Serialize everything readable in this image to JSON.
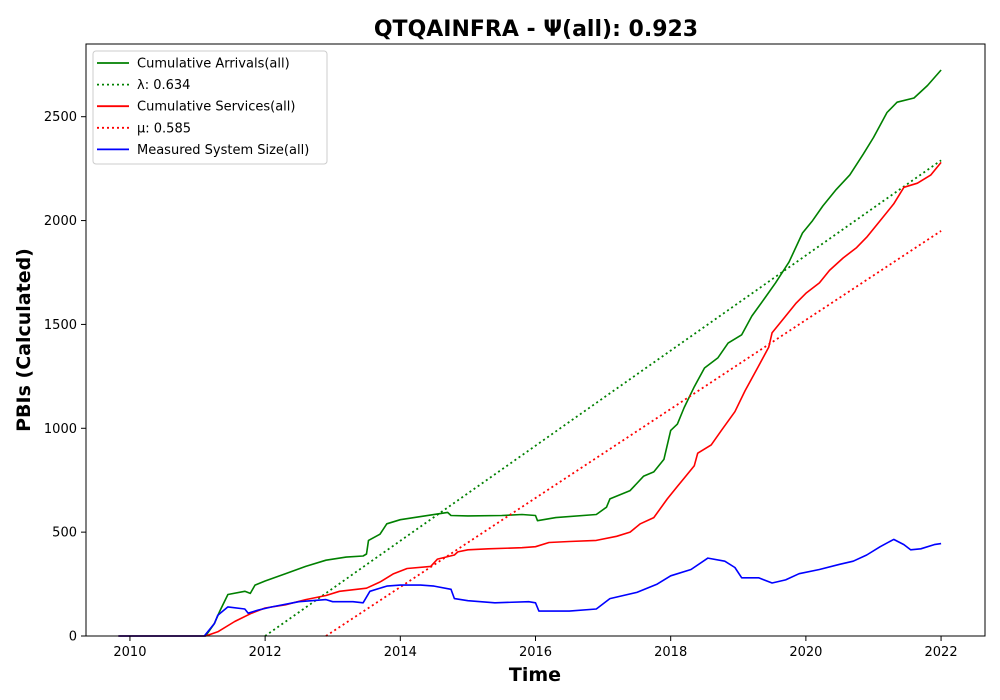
{
  "chart_data": {
    "type": "line",
    "title": "QTQAINFRA -  Ψ(all): 0.923",
    "xlabel": "Time",
    "ylabel": "PBIs (Calculated)",
    "xlim": [
      2009.35,
      2022.65
    ],
    "ylim": [
      0,
      2850
    ],
    "xticks": [
      2010,
      2012,
      2014,
      2016,
      2018,
      2020,
      2022
    ],
    "yticks": [
      0,
      500,
      1000,
      1500,
      2000,
      2500
    ],
    "grid": false,
    "legend_position": "upper-left",
    "series": [
      {
        "name": "Cumulative Arrivals(all)",
        "color": "#008000",
        "style": "solid",
        "points": [
          [
            2009.83,
            0
          ],
          [
            2011.12,
            0
          ],
          [
            2011.25,
            60
          ],
          [
            2011.33,
            120
          ],
          [
            2011.45,
            200
          ],
          [
            2011.7,
            215
          ],
          [
            2011.78,
            205
          ],
          [
            2011.85,
            245
          ],
          [
            2012.0,
            265
          ],
          [
            2012.3,
            300
          ],
          [
            2012.6,
            335
          ],
          [
            2012.9,
            365
          ],
          [
            2013.2,
            380
          ],
          [
            2013.45,
            385
          ],
          [
            2013.5,
            395
          ],
          [
            2013.53,
            460
          ],
          [
            2013.7,
            490
          ],
          [
            2013.8,
            540
          ],
          [
            2014.0,
            560
          ],
          [
            2014.3,
            575
          ],
          [
            2014.7,
            595
          ],
          [
            2014.75,
            580
          ],
          [
            2015.0,
            578
          ],
          [
            2015.5,
            580
          ],
          [
            2015.8,
            585
          ],
          [
            2016.0,
            580
          ],
          [
            2016.03,
            555
          ],
          [
            2016.3,
            570
          ],
          [
            2016.9,
            585
          ],
          [
            2017.05,
            620
          ],
          [
            2017.1,
            660
          ],
          [
            2017.4,
            700
          ],
          [
            2017.6,
            770
          ],
          [
            2017.75,
            790
          ],
          [
            2017.9,
            850
          ],
          [
            2018.0,
            990
          ],
          [
            2018.1,
            1020
          ],
          [
            2018.2,
            1100
          ],
          [
            2018.35,
            1200
          ],
          [
            2018.5,
            1290
          ],
          [
            2018.7,
            1340
          ],
          [
            2018.85,
            1410
          ],
          [
            2019.05,
            1450
          ],
          [
            2019.2,
            1540
          ],
          [
            2019.4,
            1630
          ],
          [
            2019.55,
            1700
          ],
          [
            2019.75,
            1800
          ],
          [
            2019.95,
            1940
          ],
          [
            2020.1,
            2000
          ],
          [
            2020.25,
            2070
          ],
          [
            2020.45,
            2150
          ],
          [
            2020.65,
            2220
          ],
          [
            2020.85,
            2320
          ],
          [
            2021.0,
            2400
          ],
          [
            2021.2,
            2520
          ],
          [
            2021.35,
            2570
          ],
          [
            2021.6,
            2590
          ],
          [
            2021.8,
            2650
          ],
          [
            2022.0,
            2725
          ]
        ]
      },
      {
        "name": "λ: 0.634",
        "color": "#008000",
        "style": "dotted",
        "points": [
          [
            2012.0,
            0
          ],
          [
            2022.0,
            2290
          ]
        ]
      },
      {
        "name": "Cumulative Services(all)",
        "color": "#ff0000",
        "style": "solid",
        "points": [
          [
            2009.83,
            0
          ],
          [
            2011.12,
            0
          ],
          [
            2011.3,
            20
          ],
          [
            2011.55,
            70
          ],
          [
            2011.8,
            110
          ],
          [
            2012.0,
            135
          ],
          [
            2012.3,
            150
          ],
          [
            2012.6,
            175
          ],
          [
            2012.9,
            195
          ],
          [
            2013.1,
            215
          ],
          [
            2013.5,
            230
          ],
          [
            2013.7,
            260
          ],
          [
            2013.9,
            300
          ],
          [
            2014.1,
            325
          ],
          [
            2014.45,
            335
          ],
          [
            2014.55,
            370
          ],
          [
            2014.8,
            390
          ],
          [
            2014.85,
            405
          ],
          [
            2015.0,
            415
          ],
          [
            2015.3,
            420
          ],
          [
            2015.8,
            425
          ],
          [
            2016.0,
            430
          ],
          [
            2016.2,
            450
          ],
          [
            2016.5,
            455
          ],
          [
            2016.9,
            460
          ],
          [
            2017.2,
            480
          ],
          [
            2017.4,
            500
          ],
          [
            2017.55,
            540
          ],
          [
            2017.75,
            570
          ],
          [
            2017.95,
            660
          ],
          [
            2018.1,
            720
          ],
          [
            2018.2,
            760
          ],
          [
            2018.35,
            820
          ],
          [
            2018.4,
            880
          ],
          [
            2018.6,
            920
          ],
          [
            2018.75,
            990
          ],
          [
            2018.95,
            1080
          ],
          [
            2019.1,
            1180
          ],
          [
            2019.3,
            1300
          ],
          [
            2019.45,
            1390
          ],
          [
            2019.5,
            1460
          ],
          [
            2019.7,
            1540
          ],
          [
            2019.85,
            1600
          ],
          [
            2020.0,
            1650
          ],
          [
            2020.2,
            1700
          ],
          [
            2020.35,
            1760
          ],
          [
            2020.55,
            1820
          ],
          [
            2020.75,
            1870
          ],
          [
            2020.9,
            1920
          ],
          [
            2021.1,
            2000
          ],
          [
            2021.3,
            2080
          ],
          [
            2021.45,
            2160
          ],
          [
            2021.65,
            2180
          ],
          [
            2021.85,
            2220
          ],
          [
            2022.0,
            2280
          ]
        ]
      },
      {
        "name": "μ: 0.585",
        "color": "#ff0000",
        "style": "dotted",
        "points": [
          [
            2012.9,
            0
          ],
          [
            2022.0,
            1950
          ]
        ]
      },
      {
        "name": "Measured System Size(all)",
        "color": "#0000ff",
        "style": "solid",
        "points": [
          [
            2009.83,
            0
          ],
          [
            2011.1,
            0
          ],
          [
            2011.25,
            60
          ],
          [
            2011.3,
            100
          ],
          [
            2011.45,
            140
          ],
          [
            2011.7,
            130
          ],
          [
            2011.75,
            110
          ],
          [
            2011.9,
            125
          ],
          [
            2012.1,
            140
          ],
          [
            2012.5,
            165
          ],
          [
            2012.9,
            175
          ],
          [
            2013.0,
            165
          ],
          [
            2013.3,
            165
          ],
          [
            2013.45,
            160
          ],
          [
            2013.55,
            215
          ],
          [
            2013.8,
            240
          ],
          [
            2014.0,
            245
          ],
          [
            2014.3,
            245
          ],
          [
            2014.5,
            240
          ],
          [
            2014.75,
            225
          ],
          [
            2014.8,
            180
          ],
          [
            2015.0,
            170
          ],
          [
            2015.4,
            160
          ],
          [
            2015.9,
            165
          ],
          [
            2016.0,
            160
          ],
          [
            2016.05,
            120
          ],
          [
            2016.5,
            120
          ],
          [
            2016.9,
            130
          ],
          [
            2017.1,
            180
          ],
          [
            2017.5,
            210
          ],
          [
            2017.8,
            250
          ],
          [
            2018.0,
            290
          ],
          [
            2018.3,
            320
          ],
          [
            2018.55,
            375
          ],
          [
            2018.8,
            360
          ],
          [
            2018.95,
            330
          ],
          [
            2019.05,
            280
          ],
          [
            2019.3,
            280
          ],
          [
            2019.5,
            255
          ],
          [
            2019.7,
            270
          ],
          [
            2019.9,
            300
          ],
          [
            2020.2,
            320
          ],
          [
            2020.5,
            345
          ],
          [
            2020.7,
            360
          ],
          [
            2020.9,
            390
          ],
          [
            2021.1,
            430
          ],
          [
            2021.3,
            465
          ],
          [
            2021.45,
            440
          ],
          [
            2021.55,
            415
          ],
          [
            2021.7,
            420
          ],
          [
            2021.9,
            440
          ],
          [
            2022.0,
            445
          ]
        ]
      }
    ]
  }
}
